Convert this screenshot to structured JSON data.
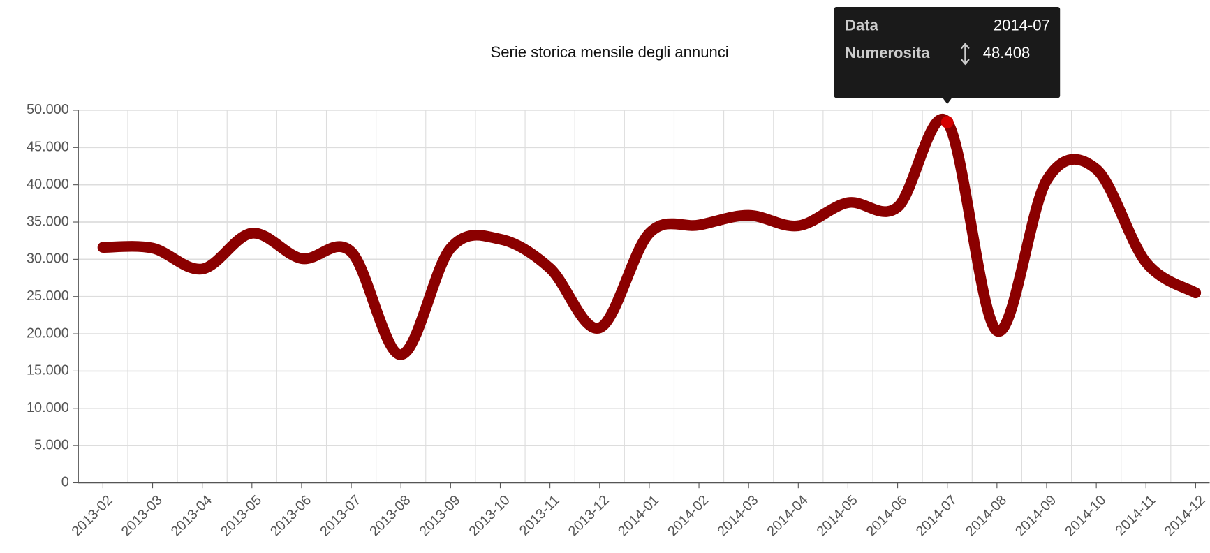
{
  "chart_data": {
    "type": "line",
    "title": "Serie storica mensile degli annunci",
    "categories": [
      "2013-02",
      "2013-03",
      "2013-04",
      "2013-05",
      "2013-06",
      "2013-07",
      "2013-08",
      "2013-09",
      "2013-10",
      "2013-11",
      "2013-12",
      "2014-01",
      "2014-02",
      "2014-03",
      "2014-04",
      "2014-05",
      "2014-06",
      "2014-07",
      "2014-08",
      "2014-09",
      "2014-10",
      "2014-11",
      "2014-12"
    ],
    "series": [
      {
        "name": "Numerosita",
        "color": "#8b0000",
        "values": [
          31600,
          31500,
          28700,
          33500,
          30100,
          31000,
          17200,
          31500,
          32700,
          28800,
          20800,
          33500,
          34600,
          35900,
          34500,
          37600,
          37000,
          48408,
          20400,
          40600,
          42100,
          29600,
          25500
        ]
      }
    ],
    "ylim": [
      0,
      50000
    ],
    "yticks": [
      {
        "value": 0,
        "label": "0"
      },
      {
        "value": 5000,
        "label": "5.000"
      },
      {
        "value": 10000,
        "label": "10.000"
      },
      {
        "value": 15000,
        "label": "15.000"
      },
      {
        "value": 20000,
        "label": "20.000"
      },
      {
        "value": 25000,
        "label": "25.000"
      },
      {
        "value": 30000,
        "label": "30.000"
      },
      {
        "value": 35000,
        "label": "35.000"
      },
      {
        "value": 40000,
        "label": "40.000"
      },
      {
        "value": 45000,
        "label": "45.000"
      },
      {
        "value": 50000,
        "label": "50.000"
      }
    ],
    "grid": true,
    "tooltip": {
      "index": 17,
      "key_label": "Data",
      "key_value": "2014-07",
      "value_name": "Numerosita",
      "value_label": "48.408",
      "color": "#d40000"
    }
  }
}
